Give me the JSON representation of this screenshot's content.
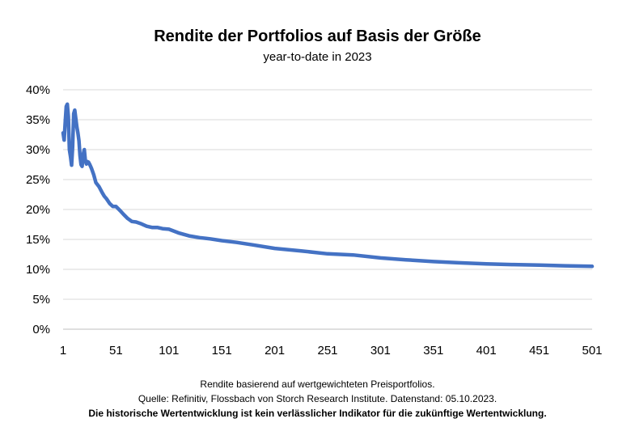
{
  "chart_data": {
    "type": "line",
    "title": "Rendite der Portfolios auf Basis der Größe",
    "subtitle": "year-to-date in 2023",
    "xlabel": "",
    "ylabel": "",
    "xlim": [
      1,
      501
    ],
    "ylim": [
      0,
      0.4
    ],
    "x_ticks": [
      "1",
      "51",
      "101",
      "151",
      "201",
      "251",
      "301",
      "351",
      "401",
      "451",
      "501"
    ],
    "y_ticks": [
      "0%",
      "5%",
      "10%",
      "15%",
      "20%",
      "25%",
      "30%",
      "35%",
      "40%"
    ],
    "grid": true,
    "legend": "none",
    "line_color": "#4472C4",
    "series": [
      {
        "x": [
          1,
          2,
          3,
          4,
          5,
          6,
          7,
          8,
          9,
          10,
          11,
          12,
          13,
          14,
          15,
          16,
          17,
          18,
          19,
          20,
          21,
          22,
          23,
          24,
          25,
          26,
          27,
          28,
          30,
          32,
          35,
          38,
          40,
          42,
          45,
          48,
          51,
          55,
          58,
          62,
          66,
          70,
          75,
          80,
          85,
          90,
          95,
          101,
          110,
          120,
          130,
          140,
          151,
          165,
          180,
          201,
          225,
          251,
          275,
          301,
          325,
          351,
          375,
          401,
          425,
          451,
          475,
          501
        ],
        "values": [
          0.328,
          0.316,
          0.345,
          0.372,
          0.376,
          0.355,
          0.3,
          0.288,
          0.274,
          0.305,
          0.36,
          0.366,
          0.352,
          0.338,
          0.328,
          0.315,
          0.29,
          0.275,
          0.272,
          0.292,
          0.3,
          0.282,
          0.276,
          0.28,
          0.279,
          0.276,
          0.272,
          0.268,
          0.258,
          0.245,
          0.238,
          0.228,
          0.222,
          0.218,
          0.21,
          0.205,
          0.205,
          0.198,
          0.192,
          0.185,
          0.18,
          0.179,
          0.176,
          0.172,
          0.17,
          0.17,
          0.168,
          0.167,
          0.161,
          0.156,
          0.153,
          0.151,
          0.148,
          0.145,
          0.141,
          0.135,
          0.131,
          0.126,
          0.124,
          0.119,
          0.116,
          0.113,
          0.111,
          0.109,
          0.108,
          0.107,
          0.106,
          0.105
        ]
      }
    ]
  },
  "footnotes": {
    "line1": "Rendite basierend auf wertgewichteten Preisportfolios.",
    "line2": "Quelle: Refinitiv, Flossbach von Storch Research Institute. Datenstand: 05.10.2023.",
    "line3": "Die historische Wertentwicklung ist kein verlässlicher Indikator für die zukünftige Wertentwicklung."
  }
}
